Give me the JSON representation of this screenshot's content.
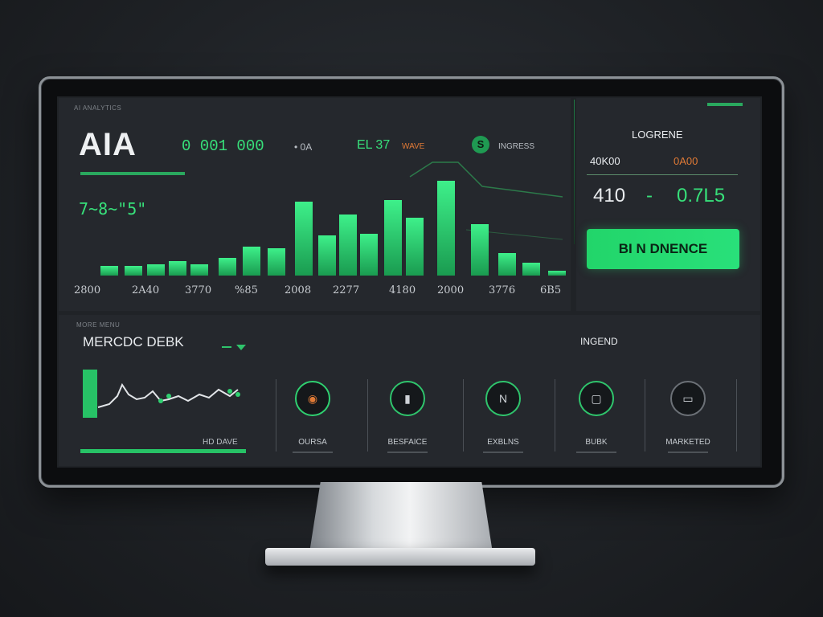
{
  "header": {
    "small_caption": "AI ANALYTICS",
    "brand": "AIA",
    "counter": "0 001 000",
    "stat_1": "• 0A",
    "stat_2": "EL 37",
    "stat_3": "WAVE",
    "badge": "S",
    "badge_label": "INGRESS",
    "delta": "7~8~\"5\""
  },
  "top_chart": {
    "tick_labels": [
      "2800",
      "2A40",
      "3770",
      "%85",
      "2008",
      "2277",
      "4180",
      "2000",
      "3776",
      "6B5"
    ]
  },
  "right_panel": {
    "title": "LOGRENE",
    "left_label": "40K00",
    "right_label": "0A00",
    "value_left": "410",
    "value_sep": "-",
    "value_right": "0.7L5",
    "cta_label": "BI N DNENCE"
  },
  "bottom": {
    "caption": "MORE MENU",
    "title": "MERCDC DEBK",
    "right_label": "INGEND",
    "mini_chart_label": "HD DAVE",
    "tiles": [
      {
        "icon": "circle-icon",
        "glyph": "◉",
        "label": "OURSA"
      },
      {
        "icon": "bar-icon",
        "glyph": "▮",
        "label": "BESFAICE"
      },
      {
        "icon": "letter-icon",
        "glyph": "N",
        "label": "EXBLNS"
      },
      {
        "icon": "square-icon",
        "glyph": "▢",
        "label": "BUBK"
      },
      {
        "icon": "card-icon",
        "glyph": "▭",
        "label": "MARKETED"
      }
    ]
  },
  "colors": {
    "accent": "#37e07a",
    "accent_dark": "#1f9a52",
    "orange": "#e07a36",
    "panel": "#25282d"
  }
}
